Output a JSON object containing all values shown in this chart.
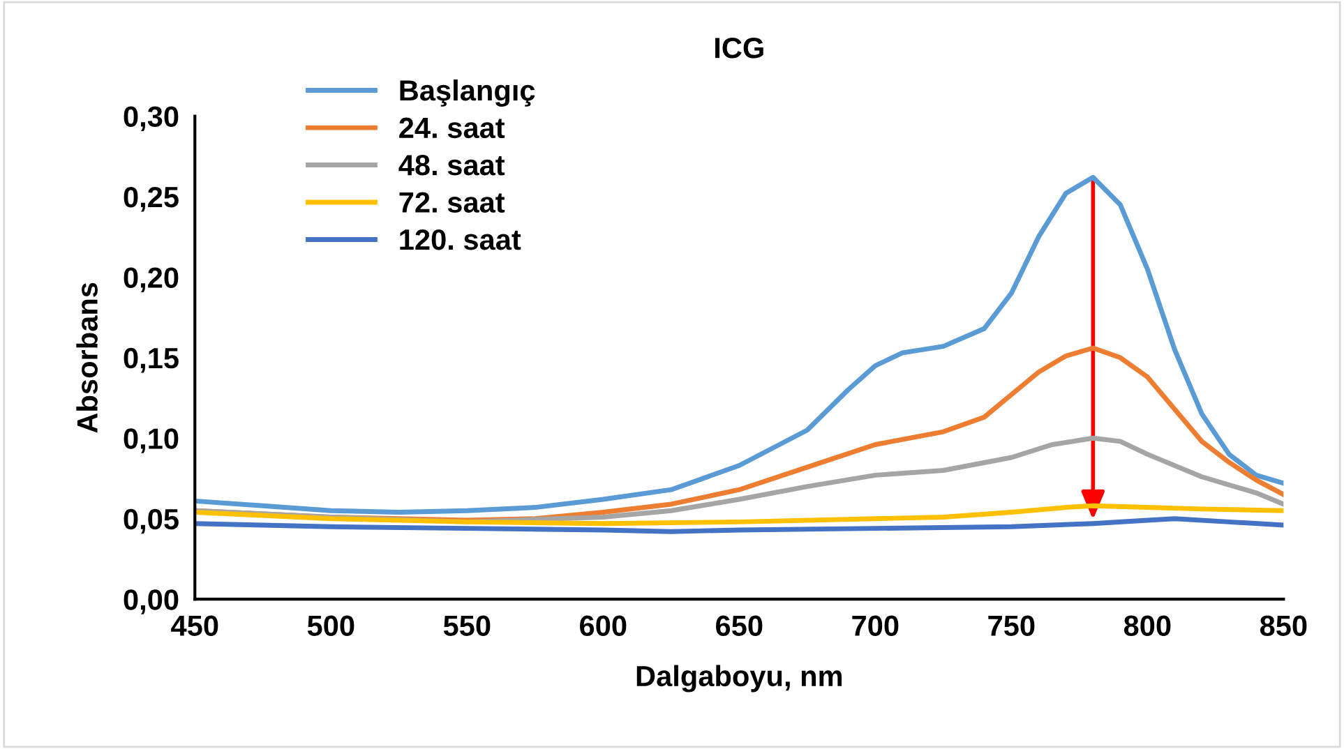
{
  "chart_data": {
    "type": "line",
    "title": "ICG",
    "xlabel": "Dalgaboyu, nm",
    "ylabel": "Absorbans",
    "xlim": [
      450,
      850
    ],
    "xticks": [
      450,
      500,
      550,
      600,
      650,
      700,
      750,
      800,
      850
    ],
    "ylim": [
      0,
      0.3
    ],
    "yticks": [
      {
        "value": 0,
        "label": "0,00"
      },
      {
        "value": 0.05,
        "label": "0,05"
      },
      {
        "value": 0.1,
        "label": "0,10"
      },
      {
        "value": 0.15,
        "label": "0,15"
      },
      {
        "value": 0.2,
        "label": "0,20"
      },
      {
        "value": 0.25,
        "label": "0,25"
      },
      {
        "value": 0.3,
        "label": "0,30"
      }
    ],
    "grid": false,
    "legend": "top left",
    "marker": "none",
    "line_style": "solid",
    "series": [
      {
        "name": "Başlangıç",
        "color": "#5b9bd5",
        "x": [
          450,
          475,
          500,
          525,
          550,
          575,
          600,
          625,
          650,
          675,
          690,
          700,
          710,
          725,
          740,
          750,
          760,
          770,
          780,
          790,
          800,
          810,
          820,
          830,
          840,
          850
        ],
        "values": [
          0.061,
          0.058,
          0.055,
          0.054,
          0.055,
          0.057,
          0.062,
          0.068,
          0.083,
          0.105,
          0.13,
          0.145,
          0.153,
          0.157,
          0.168,
          0.19,
          0.225,
          0.252,
          0.262,
          0.245,
          0.205,
          0.155,
          0.115,
          0.09,
          0.077,
          0.072
        ]
      },
      {
        "name": "24. saat",
        "color": "#ed7d31",
        "x": [
          450,
          500,
          550,
          575,
          600,
          625,
          650,
          675,
          700,
          725,
          740,
          750,
          760,
          770,
          780,
          790,
          800,
          810,
          820,
          830,
          840,
          850
        ],
        "values": [
          0.055,
          0.051,
          0.049,
          0.05,
          0.054,
          0.059,
          0.068,
          0.082,
          0.096,
          0.104,
          0.113,
          0.127,
          0.141,
          0.151,
          0.156,
          0.15,
          0.138,
          0.118,
          0.098,
          0.085,
          0.074,
          0.065
        ]
      },
      {
        "name": "48. saat",
        "color": "#a5a5a5",
        "x": [
          450,
          500,
          550,
          600,
          625,
          650,
          675,
          700,
          725,
          750,
          765,
          780,
          790,
          800,
          820,
          840,
          850
        ],
        "values": [
          0.055,
          0.051,
          0.048,
          0.051,
          0.055,
          0.062,
          0.07,
          0.077,
          0.08,
          0.088,
          0.096,
          0.1,
          0.098,
          0.09,
          0.076,
          0.066,
          0.059
        ]
      },
      {
        "name": "72. saat",
        "color": "#ffc000",
        "x": [
          450,
          500,
          550,
          600,
          650,
          700,
          725,
          750,
          770,
          780,
          800,
          820,
          850
        ],
        "values": [
          0.054,
          0.05,
          0.048,
          0.047,
          0.048,
          0.05,
          0.051,
          0.054,
          0.057,
          0.058,
          0.057,
          0.056,
          0.055
        ]
      },
      {
        "name": "120. saat",
        "color": "#4472c4",
        "x": [
          450,
          500,
          550,
          600,
          625,
          650,
          700,
          750,
          780,
          800,
          810,
          830,
          850
        ],
        "values": [
          0.047,
          0.045,
          0.044,
          0.043,
          0.042,
          0.043,
          0.044,
          0.045,
          0.047,
          0.049,
          0.05,
          0.048,
          0.046
        ]
      }
    ]
  }
}
